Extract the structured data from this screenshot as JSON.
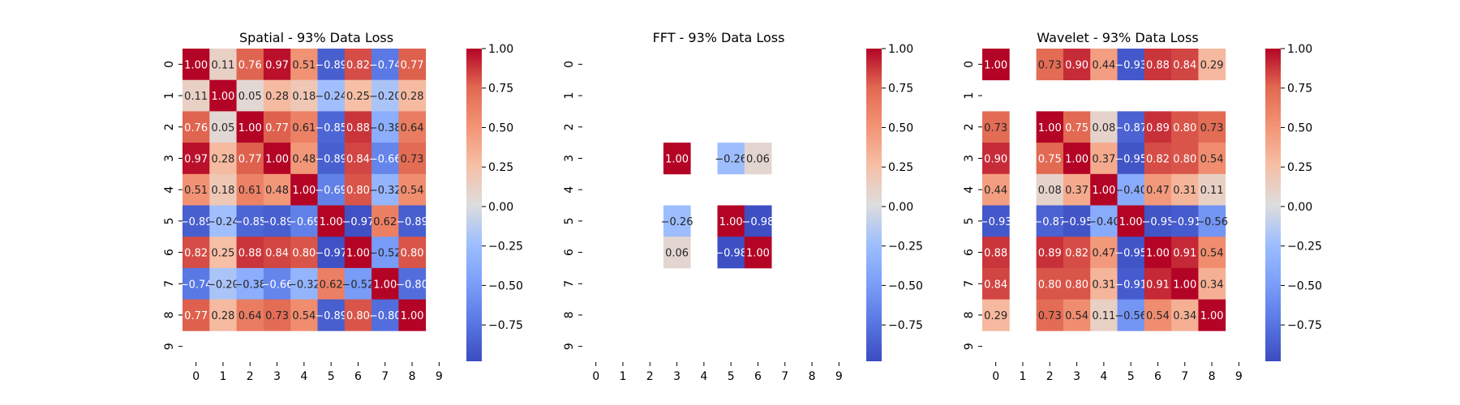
{
  "chart_data": [
    {
      "type": "heatmap",
      "title": "Spatial - 93% Data Loss",
      "x": [
        0,
        1,
        2,
        3,
        4,
        5,
        6,
        7,
        8,
        9
      ],
      "y": [
        0,
        1,
        2,
        3,
        4,
        5,
        6,
        7,
        8,
        9
      ],
      "colormap": "coolwarm",
      "vmin": -1.0,
      "vmax": 1.0,
      "colorbar_ticks": [
        "1.00",
        "0.75",
        "0.50",
        "0.25",
        "0.00",
        "−0.25",
        "−0.50",
        "−0.75"
      ],
      "values": [
        [
          1.0,
          0.11,
          0.76,
          0.97,
          0.51,
          -0.89,
          0.82,
          -0.74,
          0.77,
          null
        ],
        [
          0.11,
          1.0,
          0.05,
          0.28,
          0.18,
          -0.24,
          0.25,
          -0.2,
          0.28,
          null
        ],
        [
          0.76,
          0.05,
          1.0,
          0.77,
          0.61,
          -0.85,
          0.88,
          -0.38,
          0.64,
          null
        ],
        [
          0.97,
          0.28,
          0.77,
          1.0,
          0.48,
          -0.89,
          0.84,
          -0.66,
          0.73,
          null
        ],
        [
          0.51,
          0.18,
          0.61,
          0.48,
          1.0,
          -0.69,
          0.8,
          -0.32,
          0.54,
          null
        ],
        [
          -0.89,
          -0.24,
          -0.85,
          -0.89,
          -0.69,
          1.0,
          -0.97,
          0.62,
          -0.89,
          null
        ],
        [
          0.82,
          0.25,
          0.88,
          0.84,
          0.8,
          -0.97,
          1.0,
          -0.52,
          0.8,
          null
        ],
        [
          -0.74,
          -0.2,
          -0.38,
          -0.66,
          -0.32,
          0.62,
          -0.52,
          1.0,
          -0.8,
          null
        ],
        [
          0.77,
          0.28,
          0.64,
          0.73,
          0.54,
          -0.89,
          0.8,
          -0.8,
          1.0,
          null
        ],
        [
          null,
          null,
          null,
          null,
          null,
          null,
          null,
          null,
          null,
          null
        ]
      ]
    },
    {
      "type": "heatmap",
      "title": "FFT - 93% Data Loss",
      "x": [
        0,
        1,
        2,
        3,
        4,
        5,
        6,
        7,
        8,
        9
      ],
      "y": [
        0,
        1,
        2,
        3,
        4,
        5,
        6,
        7,
        8,
        9
      ],
      "colormap": "coolwarm",
      "vmin": -1.0,
      "vmax": 1.0,
      "colorbar_ticks": [
        "1.00",
        "0.75",
        "0.50",
        "0.25",
        "0.00",
        "−0.25",
        "−0.50",
        "−0.75"
      ],
      "values": [
        [
          null,
          null,
          null,
          null,
          null,
          null,
          null,
          null,
          null,
          null
        ],
        [
          null,
          null,
          null,
          null,
          null,
          null,
          null,
          null,
          null,
          null
        ],
        [
          null,
          null,
          null,
          null,
          null,
          null,
          null,
          null,
          null,
          null
        ],
        [
          null,
          null,
          null,
          1.0,
          null,
          -0.26,
          0.06,
          null,
          null,
          null
        ],
        [
          null,
          null,
          null,
          null,
          null,
          null,
          null,
          null,
          null,
          null
        ],
        [
          null,
          null,
          null,
          -0.26,
          null,
          1.0,
          -0.98,
          null,
          null,
          null
        ],
        [
          null,
          null,
          null,
          0.06,
          null,
          -0.98,
          1.0,
          null,
          null,
          null
        ],
        [
          null,
          null,
          null,
          null,
          null,
          null,
          null,
          null,
          null,
          null
        ],
        [
          null,
          null,
          null,
          null,
          null,
          null,
          null,
          null,
          null,
          null
        ],
        [
          null,
          null,
          null,
          null,
          null,
          null,
          null,
          null,
          null,
          null
        ]
      ]
    },
    {
      "type": "heatmap",
      "title": "Wavelet - 93% Data Loss",
      "x": [
        0,
        1,
        2,
        3,
        4,
        5,
        6,
        7,
        8,
        9
      ],
      "y": [
        0,
        1,
        2,
        3,
        4,
        5,
        6,
        7,
        8,
        9
      ],
      "colormap": "coolwarm",
      "vmin": -1.0,
      "vmax": 1.0,
      "colorbar_ticks": [
        "1.00",
        "0.75",
        "0.50",
        "0.25",
        "0.00",
        "−0.25",
        "−0.50",
        "−0.75"
      ],
      "values": [
        [
          1.0,
          null,
          0.73,
          0.9,
          0.44,
          -0.93,
          0.88,
          0.84,
          0.29,
          null
        ],
        [
          null,
          null,
          null,
          null,
          null,
          null,
          null,
          null,
          null,
          null
        ],
        [
          0.73,
          null,
          1.0,
          0.75,
          0.08,
          -0.87,
          0.89,
          0.8,
          0.73,
          null
        ],
        [
          0.9,
          null,
          0.75,
          1.0,
          0.37,
          -0.95,
          0.82,
          0.8,
          0.54,
          null
        ],
        [
          0.44,
          null,
          0.08,
          0.37,
          1.0,
          -0.4,
          0.47,
          0.31,
          0.11,
          null
        ],
        [
          -0.93,
          null,
          -0.87,
          -0.95,
          -0.4,
          1.0,
          -0.95,
          -0.91,
          -0.56,
          null
        ],
        [
          0.88,
          null,
          0.89,
          0.82,
          0.47,
          -0.95,
          1.0,
          0.91,
          0.54,
          null
        ],
        [
          0.84,
          null,
          0.8,
          0.8,
          0.31,
          -0.91,
          0.91,
          1.0,
          0.34,
          null
        ],
        [
          0.29,
          null,
          0.73,
          0.54,
          0.11,
          -0.56,
          0.54,
          0.34,
          1.0,
          null
        ],
        [
          null,
          null,
          null,
          null,
          null,
          null,
          null,
          null,
          null,
          null
        ]
      ]
    }
  ]
}
